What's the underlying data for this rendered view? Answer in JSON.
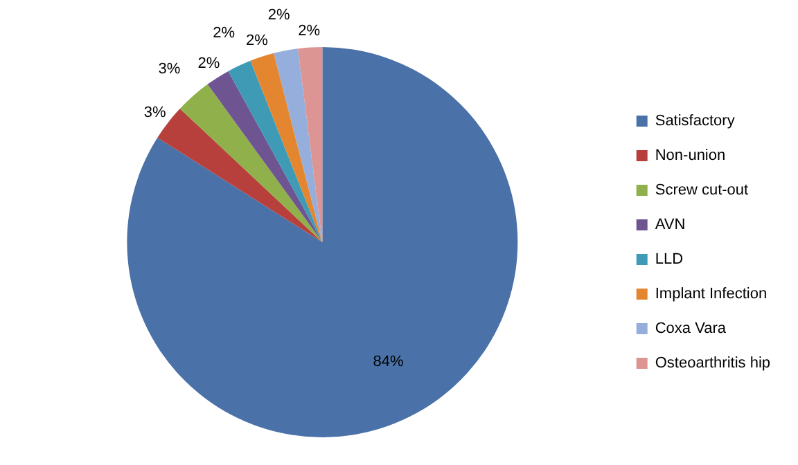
{
  "chart_data": {
    "type": "pie",
    "categories": [
      "Satisfactory",
      "Non-union",
      "Screw cut-out",
      "AVN",
      "LLD",
      "Implant Infection",
      "Coxa Vara",
      "Osteoarthritis hip"
    ],
    "values": [
      84,
      3,
      3,
      2,
      2,
      2,
      2,
      2
    ],
    "colors": [
      "#4a72a8",
      "#b8403c",
      "#8fb04a",
      "#6e5592",
      "#3f9bb5",
      "#e4862f",
      "#95aedb",
      "#dc9592"
    ],
    "value_labels": [
      "84%",
      "3%",
      "3%",
      "2%",
      "2%",
      "2%",
      "2%",
      "2%"
    ],
    "legend": "right"
  }
}
